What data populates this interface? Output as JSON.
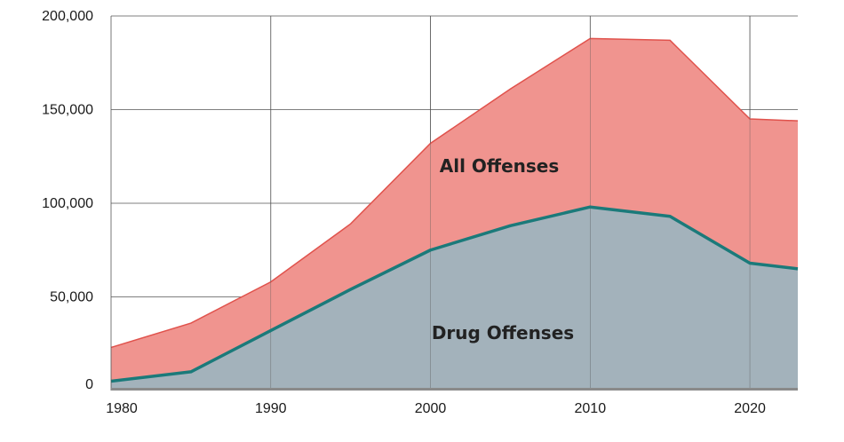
{
  "chart_data": {
    "type": "area",
    "title": "",
    "xlabel": "",
    "ylabel": "",
    "xlim": [
      1980,
      2023
    ],
    "ylim": [
      0,
      200000
    ],
    "x_ticks": [
      "1980",
      "1990",
      "2000",
      "2010",
      "2020"
    ],
    "y_ticks": [
      "0",
      "50,000",
      "100,000",
      "150,000",
      "200,000"
    ],
    "grid": true,
    "legend": "none",
    "x": [
      1980,
      1985,
      1990,
      1995,
      2000,
      2005,
      2010,
      2015,
      2020,
      2023
    ],
    "series": [
      {
        "name": "All Offenses",
        "values": [
          23000,
          36000,
          58000,
          89000,
          132000,
          161000,
          188000,
          187000,
          145000,
          144000
        ],
        "color": "#f0948f",
        "line_color": "#e0524c"
      },
      {
        "name": "Drug Offenses",
        "values": [
          5000,
          10000,
          32000,
          54000,
          75000,
          88000,
          98000,
          93000,
          68000,
          65000
        ],
        "color": "#a3b2bb",
        "line_color": "#1b7a7a"
      }
    ]
  }
}
